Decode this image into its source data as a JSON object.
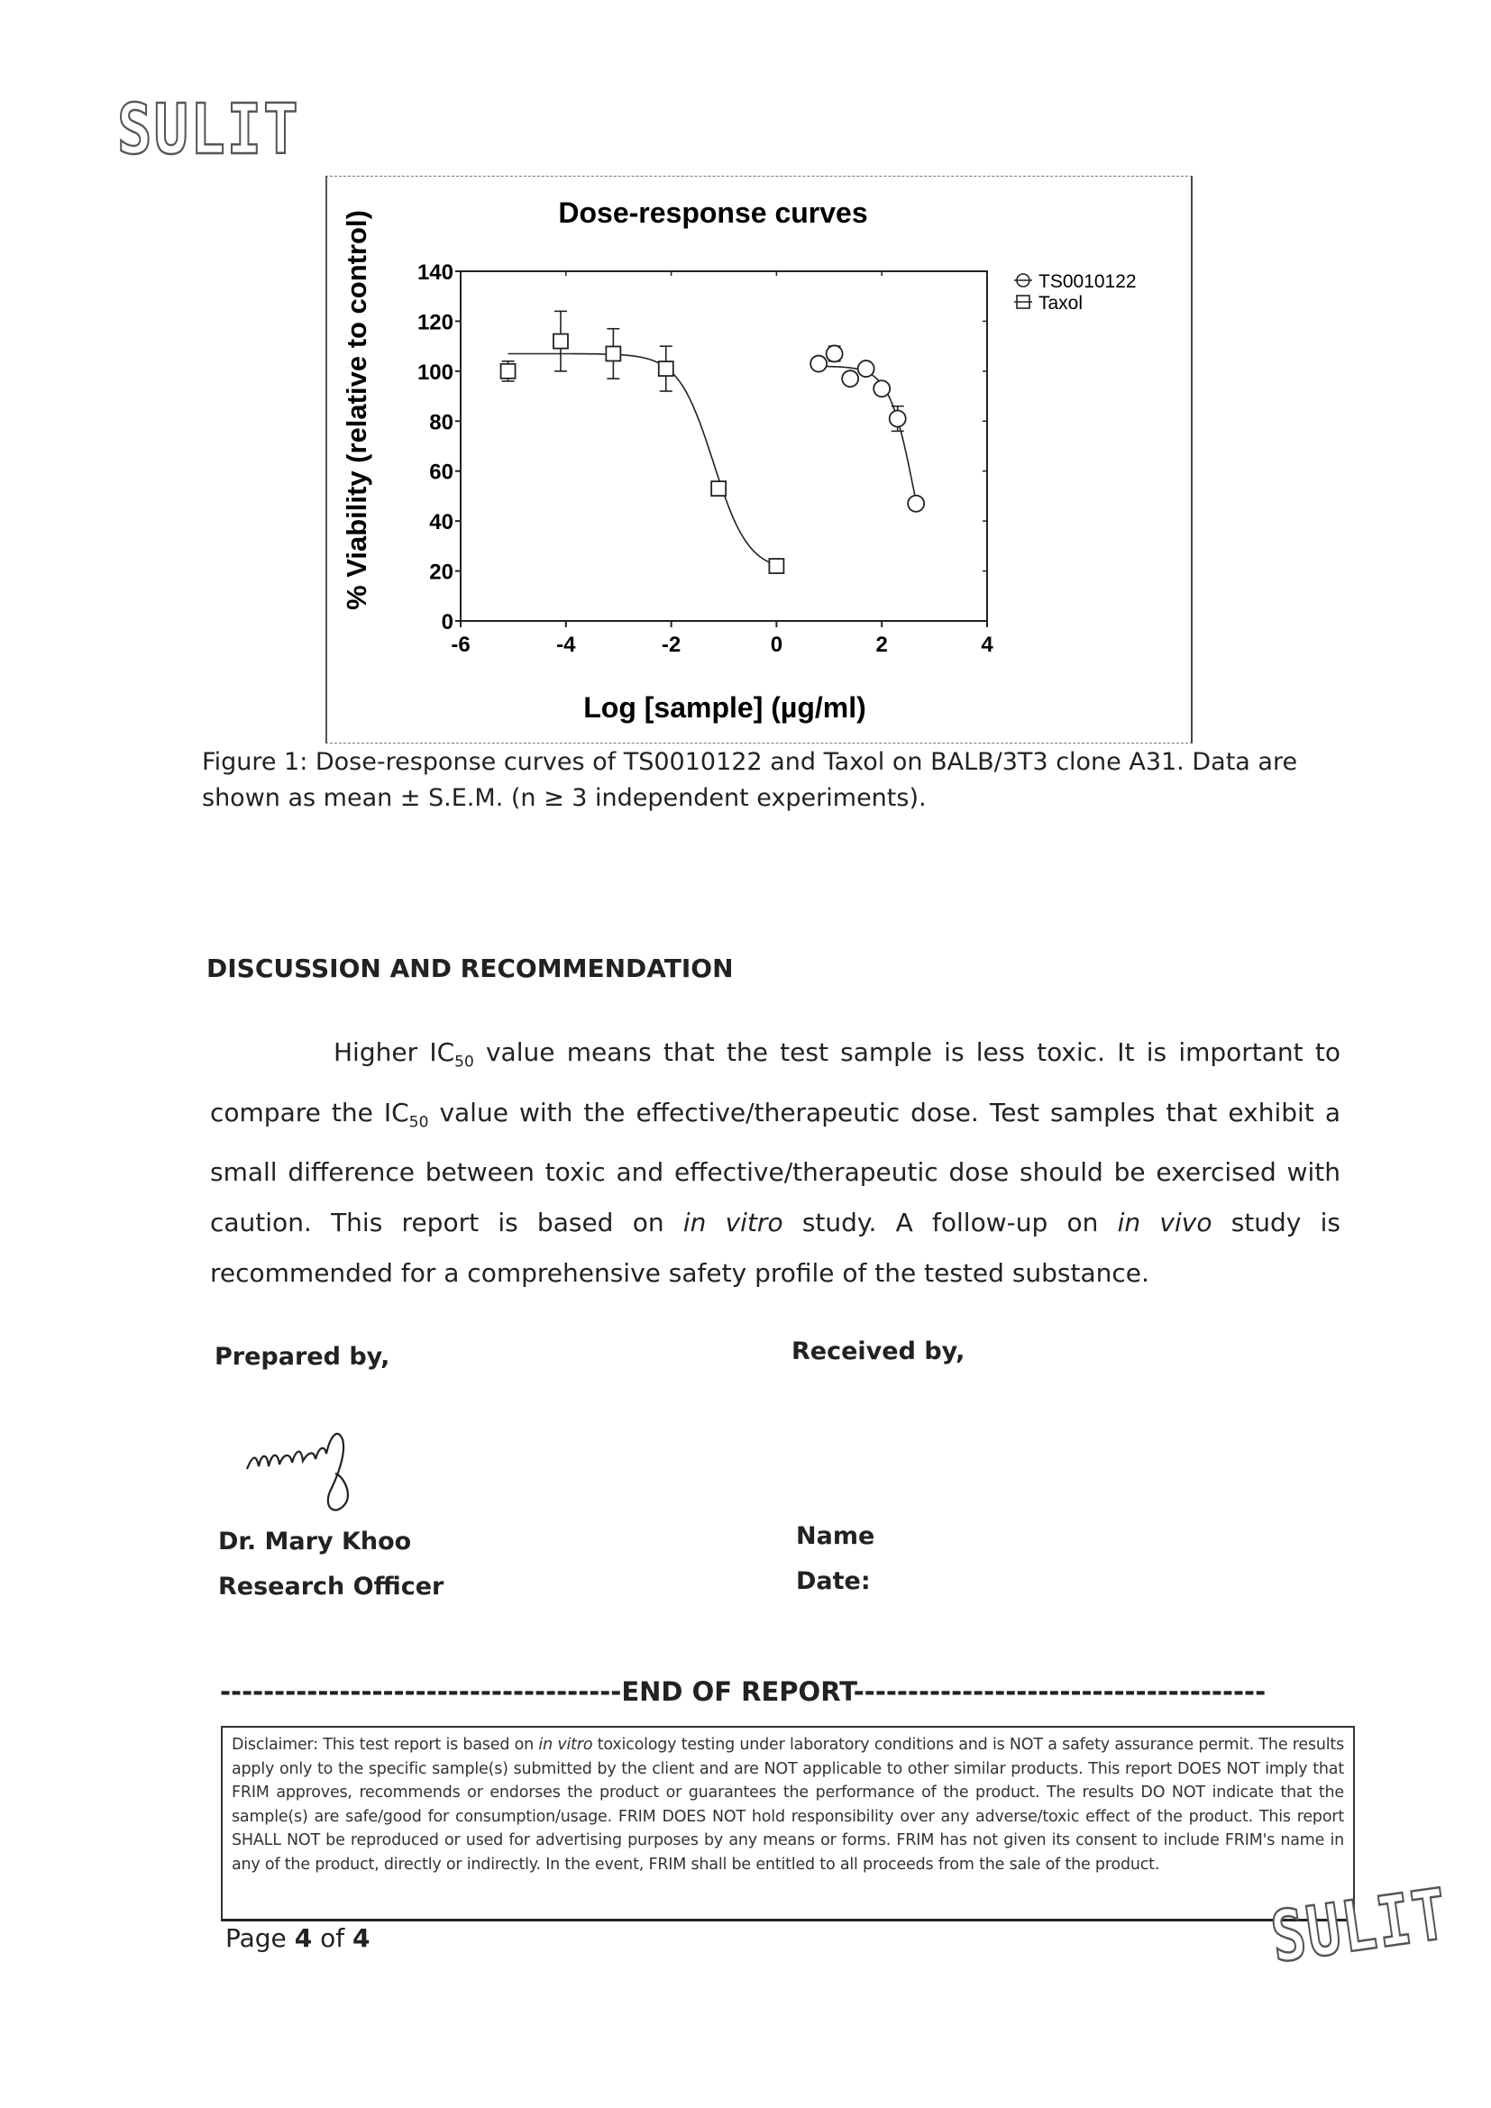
{
  "stamps": {
    "top": "SULIT",
    "bottom": "SULIT"
  },
  "chart_data": {
    "type": "scatter",
    "title": "Dose-response curves",
    "xlabel": "Log [sample] (µg/ml)",
    "ylabel": "% Viability (relative to control)",
    "xlim": [
      -6,
      4
    ],
    "ylim": [
      0,
      140
    ],
    "xticks": [
      "-6",
      "-4",
      "-2",
      "0",
      "2",
      "4"
    ],
    "yticks": [
      "0",
      "20",
      "40",
      "60",
      "80",
      "100",
      "120",
      "140"
    ],
    "grid": false,
    "legend_position": "right",
    "series": [
      {
        "name": "TS0010122",
        "marker": "circle",
        "x": [
          0.8,
          1.1,
          1.4,
          1.7,
          2.0,
          2.3,
          2.65
        ],
        "y": [
          103,
          107,
          97,
          101,
          93,
          81,
          47
        ],
        "error": [
          0,
          3,
          0,
          0,
          0,
          5,
          0
        ]
      },
      {
        "name": "Taxol",
        "marker": "square",
        "x": [
          -5.1,
          -4.1,
          -3.1,
          -2.1,
          -1.1,
          0.0
        ],
        "y": [
          100,
          112,
          107,
          101,
          53,
          22
        ],
        "error": [
          4,
          12,
          10,
          9,
          0,
          0
        ]
      }
    ]
  },
  "caption": {
    "line1": "Figure 1: Dose-response curves of TS0010122 and Taxol on BALB/3T3 clone A31. Data are",
    "line2": "shown as mean ± S.E.M. (n ≥ 3 independent experiments)."
  },
  "discussion": {
    "heading": "DISCUSSION AND RECOMMENDATION",
    "p1": "Higher IC",
    "sub1": "50",
    "p2": " value means that the test sample is less toxic. It is important to compare the IC",
    "sub2": "50",
    "p3": " value with the effective/therapeutic dose. Test samples that exhibit a small difference between toxic and effective/therapeutic dose should be exercised with caution. This report is based on ",
    "em1": "in vitro",
    "p4": " study. A follow-up on ",
    "em2": "in vivo",
    "p5": " study is recommended for a comprehensive safety profile of the tested substance."
  },
  "signatures": {
    "prepared_label": "Prepared by,",
    "received_label": "Received by,",
    "preparer_name": "Dr. Mary Khoo",
    "preparer_title": "Research Officer",
    "receiver_name_label": "Name",
    "receiver_date_label": "Date:",
    "signature_text": "mary"
  },
  "end_of_report": "-------------------------------------END OF REPORT--------------------------------------",
  "disclaimer": {
    "label": "Disclaimer:",
    "t1": " This test report is based on ",
    "em": "in vitro",
    "t2": " toxicology testing under laboratory conditions and is NOT a safety assurance permit. The results apply only to the specific sample(s) submitted by the client and are NOT applicable to other similar products. This report DOES NOT imply that FRIM approves, recommends or endorses the product or guarantees the performance of the product. The results DO NOT indicate that the sample(s) are safe/good for consumption/usage. FRIM DOES NOT hold responsibility over any adverse/toxic effect of the product. This report SHALL NOT be reproduced or used for advertising purposes by any means or forms. FRIM has not given its consent to include FRIM's name in any of the product, directly or indirectly. In the event, FRIM shall be entitled to all proceeds from the sale of the product."
  },
  "footer": {
    "page_prefix": "Page ",
    "page_num": "4",
    "page_of": " of ",
    "page_total": "4"
  }
}
